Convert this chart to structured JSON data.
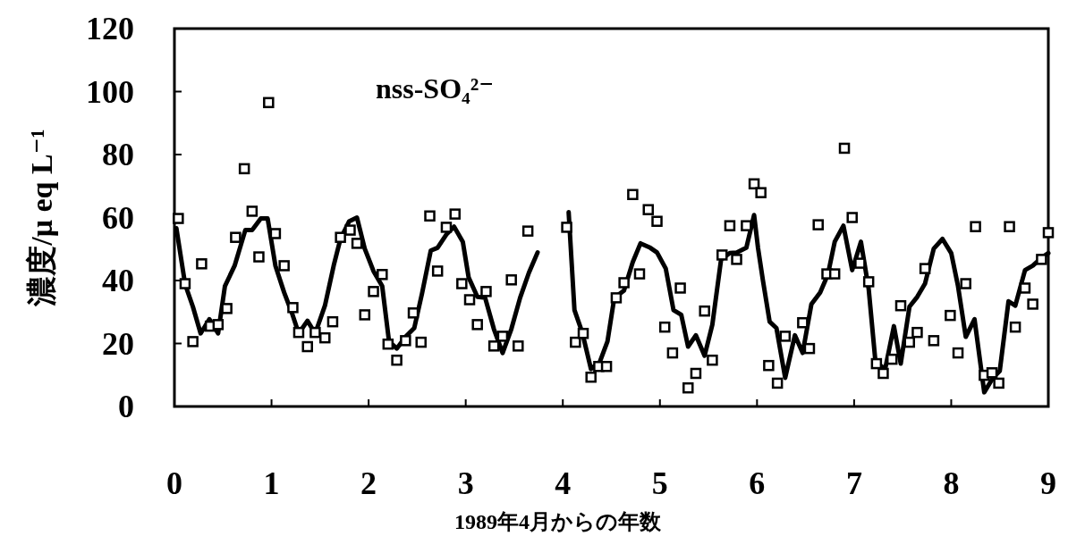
{
  "chart_data": {
    "type": "line",
    "xlabel": "1989年4月からの年数",
    "ylabel": "濃度/μ eq L⁻¹",
    "annotations": [
      "nss-SO₄²⁻"
    ],
    "xlim": [
      0,
      9
    ],
    "ylim": [
      0,
      120
    ],
    "xticks": [
      0,
      1,
      2,
      3,
      4,
      5,
      6,
      7,
      8,
      9
    ],
    "yticks": [
      0,
      20,
      40,
      60,
      80,
      100,
      120
    ],
    "grid": false,
    "series": [
      {
        "color": "#000000",
        "line_style": "solid",
        "marker": "none",
        "x": [
          0.02,
          0.11,
          0.19,
          0.27,
          0.36,
          0.45,
          0.52,
          0.62,
          0.73,
          0.8,
          0.89,
          0.96,
          1.04,
          1.13,
          1.21,
          1.28,
          1.37,
          1.45,
          1.55,
          1.64,
          1.71,
          1.8,
          1.88,
          1.96,
          2.05,
          2.14,
          2.21,
          2.29,
          2.38,
          2.47,
          2.55,
          2.64,
          2.71,
          2.8,
          2.88,
          2.97,
          3.03,
          3.12,
          3.2,
          3.29,
          3.38,
          3.47,
          3.56,
          3.65,
          3.74
        ],
        "values": [
          56.6,
          38.8,
          31.7,
          23.2,
          27.7,
          23.2,
          38.2,
          44.7,
          56.0,
          56.0,
          59.7,
          59.7,
          44.7,
          36.2,
          29.7,
          23.2,
          27.2,
          23.2,
          32.0,
          44.7,
          53.2,
          58.8,
          60.0,
          50.1,
          43.0,
          38.2,
          20.7,
          18.4,
          22.1,
          24.9,
          35.9,
          49.5,
          50.4,
          54.6,
          57.1,
          52.3,
          41.0,
          34.8,
          34.5,
          24.6,
          17.0,
          24.6,
          34.5,
          42.4,
          48.9
        ]
      },
      {
        "color": "#000000",
        "line_style": "solid",
        "marker": "none",
        "x": [
          4.06,
          4.12,
          4.2,
          4.29,
          4.38,
          4.46,
          4.53,
          4.63,
          4.72,
          4.8,
          4.9,
          4.97,
          5.06,
          5.14,
          5.22,
          5.29,
          5.37,
          5.46,
          5.54,
          5.63,
          5.72,
          5.79,
          5.89,
          5.97,
          6.01,
          6.06,
          6.13,
          6.2,
          6.29,
          6.39,
          6.47,
          6.56,
          6.65,
          6.73,
          6.8,
          6.89,
          6.98,
          7.07,
          7.15,
          7.22,
          7.32,
          7.41,
          7.48,
          7.57,
          7.65,
          7.73,
          7.82,
          7.91,
          8.0,
          8.07,
          8.15,
          8.24,
          8.34,
          8.43,
          8.5,
          8.59,
          8.66,
          8.76,
          8.84,
          8.93,
          9.0
        ],
        "values": [
          61.7,
          30.6,
          23.5,
          11.9,
          14.1,
          20.7,
          34.5,
          36.8,
          45.8,
          51.8,
          50.4,
          48.9,
          43.8,
          30.6,
          29.1,
          19.0,
          22.6,
          16.1,
          26.0,
          46.7,
          48.7,
          48.9,
          50.4,
          60.8,
          50.4,
          40.2,
          26.9,
          24.9,
          9.1,
          22.6,
          17.0,
          32.5,
          36.2,
          41.9,
          52.3,
          57.4,
          43.3,
          52.3,
          37.3,
          14.1,
          11.9,
          25.5,
          13.6,
          31.7,
          34.8,
          39.0,
          50.1,
          53.2,
          48.7,
          38.2,
          22.1,
          27.7,
          4.5,
          9.1,
          11.3,
          33.4,
          32.0,
          43.3,
          44.7,
          47.2,
          48.7
        ]
      },
      {
        "type": "scatter",
        "color": "#000000",
        "marker": "square",
        "x": [
          0.04,
          0.11,
          0.19,
          0.28,
          0.37,
          0.45,
          0.54,
          0.63,
          0.72,
          0.8,
          0.87,
          0.97,
          1.04,
          1.13,
          1.22,
          1.28,
          1.37,
          1.45,
          1.55,
          1.63,
          1.71,
          1.81,
          1.88,
          1.96,
          2.05,
          2.14,
          2.2,
          2.29,
          2.38,
          2.46,
          2.54,
          2.63,
          2.71,
          2.8,
          2.89,
          2.96,
          3.04,
          3.12,
          3.21,
          3.29,
          3.38,
          3.47,
          3.54,
          3.64,
          4.04,
          4.13,
          4.21,
          4.29,
          4.37,
          4.45,
          4.55,
          4.63,
          4.72,
          4.79,
          4.88,
          4.97,
          5.05,
          5.13,
          5.21,
          5.29,
          5.37,
          5.46,
          5.54,
          5.64,
          5.72,
          5.79,
          5.89,
          5.97,
          6.04,
          6.12,
          6.21,
          6.29,
          6.47,
          6.54,
          6.63,
          6.72,
          6.8,
          6.9,
          6.98,
          7.06,
          7.15,
          7.23,
          7.3,
          7.39,
          7.48,
          7.57,
          7.65,
          7.73,
          7.82,
          7.99,
          8.07,
          8.15,
          8.25,
          8.34,
          8.42,
          8.49,
          8.6,
          8.66,
          8.76,
          8.84,
          8.93,
          9.0
        ],
        "values": [
          59.7,
          39.0,
          20.6,
          45.3,
          25.5,
          26.0,
          31.1,
          53.7,
          75.5,
          62.0,
          47.5,
          96.5,
          54.9,
          44.7,
          31.4,
          23.5,
          19.0,
          23.5,
          21.8,
          26.9,
          53.7,
          56.0,
          51.8,
          29.1,
          36.5,
          41.9,
          19.8,
          14.7,
          20.9,
          29.7,
          20.4,
          60.5,
          43.0,
          56.9,
          61.1,
          39.0,
          33.9,
          26.0,
          36.5,
          19.2,
          22.3,
          40.2,
          19.2,
          55.7,
          56.9,
          20.4,
          23.2,
          9.3,
          12.7,
          12.7,
          34.5,
          39.3,
          67.3,
          42.1,
          62.5,
          58.8,
          25.2,
          17.0,
          37.6,
          5.9,
          10.5,
          30.3,
          14.7,
          48.1,
          57.4,
          46.7,
          57.4,
          70.7,
          67.9,
          13.0,
          7.4,
          22.3,
          26.6,
          18.4,
          57.7,
          42.1,
          42.1,
          82.0,
          60.0,
          45.5,
          39.6,
          13.6,
          10.5,
          15.0,
          32.0,
          20.4,
          23.5,
          43.8,
          20.9,
          28.9,
          17.0,
          39.0,
          57.1,
          9.9,
          10.7,
          7.4,
          57.1,
          25.2,
          37.6,
          32.5,
          46.7,
          55.2
        ]
      }
    ]
  }
}
